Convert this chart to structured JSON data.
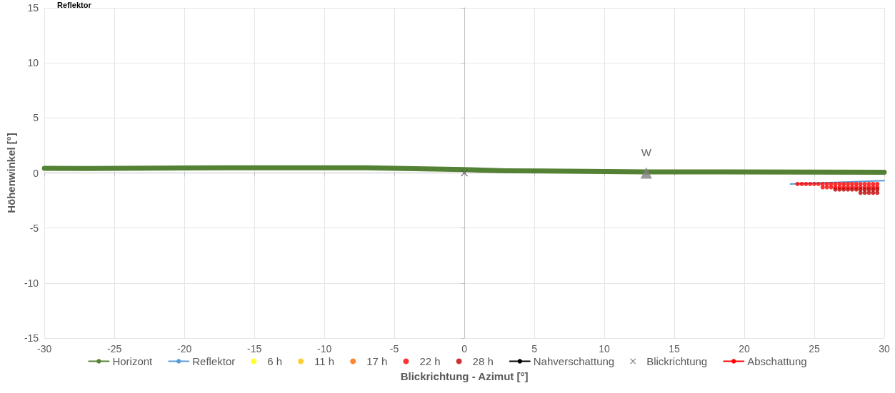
{
  "chart_data": {
    "type": "line",
    "xlabel": "Blickrichtung - Azimut [°]",
    "ylabel": "Höhenwinkel [°]",
    "annotations": [
      "Reflektor",
      {
        "text": "W",
        "x": 13,
        "y": 0
      }
    ],
    "xlim": [
      -30,
      30
    ],
    "xticks": [
      -30,
      -25,
      -20,
      -15,
      -10,
      -5,
      0,
      5,
      10,
      15,
      20,
      25,
      30
    ],
    "ylim": [
      -15,
      15
    ],
    "yticks": [
      -15,
      -10,
      -5,
      0,
      5,
      10,
      15
    ],
    "grid": true,
    "legend": "bottom",
    "series": [
      {
        "name": "Horizont",
        "color": "#548235",
        "marker": "none",
        "x": [
          -30,
          -27,
          -17,
          -7,
          0,
          3,
          13,
          30
        ],
        "values": [
          0.42,
          0.4,
          0.47,
          0.47,
          0.3,
          0.2,
          0.1,
          0.07
        ]
      },
      {
        "name": "Reflektor",
        "color": "#5b9bd5",
        "marker": "none",
        "x": [
          23.3,
          30
        ],
        "values": [
          -1.0,
          -0.7
        ]
      },
      {
        "name": "6 h",
        "type": "scatter",
        "color": "#ffff00",
        "marker": "circle"
      },
      {
        "name": "11 h",
        "type": "scatter",
        "color": "#ffc000",
        "marker": "circle"
      },
      {
        "name": "17 h",
        "type": "scatter",
        "color": "#ff6600",
        "marker": "circle"
      },
      {
        "name": "22 h",
        "type": "scatter",
        "color": "#ff0000",
        "marker": "circle",
        "x": [
          23.8,
          24.1,
          24.4,
          24.7,
          25.0,
          25.3,
          25.6,
          25.9,
          26.2,
          26.5,
          26.8,
          27.1,
          27.4,
          27.7,
          28.0,
          28.3,
          28.6,
          28.9,
          29.2,
          29.5,
          25.6,
          25.9,
          26.2,
          26.5,
          26.8,
          27.1,
          27.4,
          27.7,
          28.0,
          28.3,
          28.6,
          28.9,
          29.2,
          29.5
        ],
        "values": [
          -1.0,
          -1.0,
          -1.0,
          -1.0,
          -1.0,
          -1.0,
          -1.0,
          -1.0,
          -1.0,
          -1.0,
          -1.0,
          -1.0,
          -1.0,
          -1.0,
          -1.0,
          -1.0,
          -1.0,
          -1.0,
          -1.0,
          -1.0,
          -1.3,
          -1.3,
          -1.3,
          -1.3,
          -1.3,
          -1.3,
          -1.3,
          -1.3,
          -1.3,
          -1.3,
          -1.3,
          -1.3,
          -1.3,
          -1.3
        ]
      },
      {
        "name": "28 h",
        "type": "scatter",
        "color": "#c00000",
        "marker": "circle",
        "x": [
          26.5,
          26.8,
          27.1,
          27.4,
          27.7,
          28.0,
          28.3,
          28.6,
          28.9,
          29.2,
          29.5,
          28.3,
          28.6,
          28.9,
          29.2,
          29.5
        ],
        "values": [
          -1.5,
          -1.5,
          -1.5,
          -1.5,
          -1.5,
          -1.5,
          -1.5,
          -1.5,
          -1.5,
          -1.5,
          -1.5,
          -1.8,
          -1.8,
          -1.8,
          -1.8,
          -1.8
        ]
      },
      {
        "name": "Nahverschattung",
        "color": "#000000",
        "marker": "none"
      },
      {
        "name": "Blickrichtung",
        "type": "scatter",
        "color": "#595959",
        "marker": "cross",
        "x": [
          0
        ],
        "values": [
          0
        ]
      },
      {
        "name": "Abschattung",
        "color": "#ff0000",
        "marker": "none"
      },
      {
        "type": "scatter",
        "color": "#7f7f7f",
        "marker": "triangle",
        "x": [
          13
        ],
        "values": [
          0
        ]
      }
    ]
  }
}
